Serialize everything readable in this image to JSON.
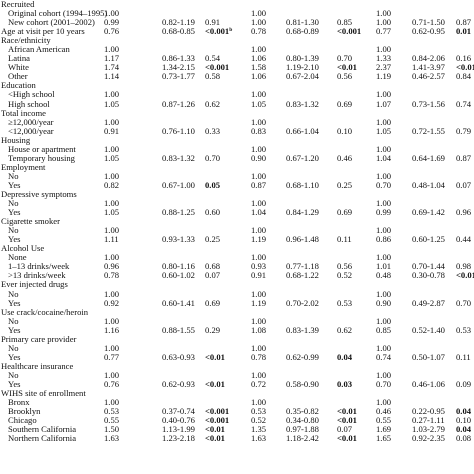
{
  "rows": [
    {
      "label": "Recruited",
      "sub": false
    },
    {
      "label": "Original cohort (1994–1995)",
      "sub": true,
      "or1": "1.00",
      "or2": "1.00",
      "or3": "1.00"
    },
    {
      "label": "New cohort (2001–2002)",
      "sub": true,
      "or1": "0.99",
      "ci1": "0.82-1.19",
      "p1": "0.91",
      "or2": "1.00",
      "ci2": "0.81-1.30",
      "p2": "0.85",
      "or3": "1.00",
      "ci3": "0.71-1.50",
      "p3": "0.87"
    },
    {
      "label": "Age at visit per 10 years",
      "sub": false,
      "or1": "0.76",
      "ci1": "0.68-0.85",
      "p1": "<0.001",
      "p1_sup": "b",
      "p1_bold": true,
      "or2": "0.78",
      "ci2": "0.68-0.89",
      "p2": "<0.001",
      "p2_bold": true,
      "or3": "0.77",
      "ci3": "0.62-0.95",
      "p3": "0.01",
      "p3_bold": true
    },
    {
      "label": "Race/ethnicity",
      "sub": false
    },
    {
      "label": "African American",
      "sub": true,
      "or1": "1.00",
      "or2": "1.00",
      "or3": "1.00"
    },
    {
      "label": "Latina",
      "sub": true,
      "or1": "1.17",
      "ci1": "0.86-1.33",
      "p1": "0.54",
      "or2": "1.06",
      "ci2": "0.80-1.39",
      "p2": "0.70",
      "or3": "1.33",
      "ci3": "0.84-2.06",
      "p3": "0.16"
    },
    {
      "label": "White",
      "sub": true,
      "or1": "1.74",
      "ci1": "1.34-2.15",
      "p1": "<0.001",
      "p1_bold": true,
      "or2": "1.58",
      "ci2": "1.19-2.10",
      "p2": "<0.01",
      "p2_bold": true,
      "or3": "2.37",
      "ci3": "1.41-3.97",
      "p3": "<0.01",
      "p3_bold": true
    },
    {
      "label": "Other",
      "sub": true,
      "or1": "1.14",
      "ci1": "0.73-1.77",
      "p1": "0.58",
      "or2": "1.06",
      "ci2": "0.67-2.04",
      "p2": "0.56",
      "or3": "1.19",
      "ci3": "0.46-2.57",
      "p3": "0.84"
    },
    {
      "label": "Education",
      "sub": false
    },
    {
      "label": "<High school",
      "sub": true,
      "or1": "1.00",
      "or2": "1.00",
      "or3": "1.00"
    },
    {
      "label": "High school",
      "sub": true,
      "or1": "1.05",
      "ci1": "0.87-1.26",
      "p1": "0.62",
      "or2": "1.05",
      "ci2": "0.83-1.32",
      "p2": "0.69",
      "or3": "1.07",
      "ci3": "0.73-1.56",
      "p3": "0.74"
    },
    {
      "label": "Total income",
      "sub": false
    },
    {
      "label": "≥12,000/year",
      "sub": true,
      "or1": "1.00",
      "or2": "1.00",
      "or3": "1.00"
    },
    {
      "label": "<12,000/year",
      "sub": true,
      "or1": "0.91",
      "ci1": "0.76-1.10",
      "p1": "0.33",
      "or2": "0.83",
      "ci2": "0.66-1.04",
      "p2": "0.10",
      "or3": "1.05",
      "ci3": "0.72-1.55",
      "p3": "0.79"
    },
    {
      "label": "Housing",
      "sub": false
    },
    {
      "label": "House or apartment",
      "sub": true,
      "or1": "1.00",
      "or2": "1.00",
      "or3": "1.00"
    },
    {
      "label": "Temporary housing",
      "sub": true,
      "or1": "1.05",
      "ci1": "0.83-1.32",
      "p1": "0.70",
      "or2": "0.90",
      "ci2": "0.67-1.20",
      "p2": "0.46",
      "or3": "1.04",
      "ci3": "0.64-1.69",
      "p3": "0.87"
    },
    {
      "label": "Employment",
      "sub": false
    },
    {
      "label": "No",
      "sub": true,
      "or1": "1.00",
      "or2": "1.00",
      "or3": "1.00"
    },
    {
      "label": "Yes",
      "sub": true,
      "or1": "0.82",
      "ci1": "0.67-1.00",
      "p1": "0.05",
      "p1_bold": true,
      "or2": "0.87",
      "ci2": "0.68-1.10",
      "p2": "0.25",
      "or3": "0.70",
      "ci3": "0.48-1.04",
      "p3": "0.07"
    },
    {
      "label": "Depressive symptoms",
      "sub": false
    },
    {
      "label": "No",
      "sub": true,
      "or1": "1.00",
      "or2": "1.00",
      "or3": "1.00"
    },
    {
      "label": "Yes",
      "sub": true,
      "or1": "1.05",
      "ci1": "0.88-1.25",
      "p1": "0.60",
      "or2": "1.04",
      "ci2": "0.84-1.29",
      "p2": "0.69",
      "or3": "0.99",
      "ci3": "0.69-1.42",
      "p3": "0.96"
    },
    {
      "label": "Cigarette smoker",
      "sub": false
    },
    {
      "label": "No",
      "sub": true,
      "or1": "1.00",
      "or2": "1.00",
      "or3": "1.00"
    },
    {
      "label": "Yes",
      "sub": true,
      "or1": "1.11",
      "ci1": "0.93-1.33",
      "p1": "0.25",
      "or2": "1.19",
      "ci2": "0.96-1.48",
      "p2": "0.11",
      "or3": "0.86",
      "ci3": "0.60-1.25",
      "p3": "0.44"
    },
    {
      "label": "Alcohol Use",
      "sub": false
    },
    {
      "label": "None",
      "sub": true,
      "or1": "1.00",
      "or2": "1.00",
      "or3": "1.00"
    },
    {
      "label": "1–13 drinks/week",
      "sub": true,
      "or1": "0.96",
      "ci1": "0.80-1.16",
      "p1": "0.68",
      "or2": "0.93",
      "ci2": "0.77-1.18",
      "p2": "0.56",
      "or3": "1.01",
      "ci3": "0.70-1.44",
      "p3": "0.98"
    },
    {
      "label": ">13 drinks/week",
      "sub": true,
      "or1": "0.78",
      "ci1": "0.60-1.02",
      "p1": "0.07",
      "or2": "0.91",
      "ci2": "0.68-1.22",
      "p2": "0.52",
      "or3": "0.48",
      "ci3": "0.30-0.78",
      "p3": "<0.01",
      "p3_bold": true
    },
    {
      "label": "Ever injected drugs",
      "sub": false
    },
    {
      "label": "No",
      "sub": true,
      "or1": "1.00",
      "or2": "1.00",
      "or3": "1.00"
    },
    {
      "label": "Yes",
      "sub": true,
      "or1": "0.92",
      "ci1": "0.60-1.41",
      "p1": "0.69",
      "or2": "1.19",
      "ci2": "0.70-2.02",
      "p2": "0.53",
      "or3": "0.90",
      "ci3": "0.49-2.87",
      "p3": "0.70"
    },
    {
      "label": "Use crack/cocaine/heroin",
      "sub": false
    },
    {
      "label": "No",
      "sub": true,
      "or1": "1.00",
      "or2": "1.00",
      "or3": "1.00"
    },
    {
      "label": "Yes",
      "sub": true,
      "or1": "1.16",
      "ci1": "0.88-1.55",
      "p1": "0.29",
      "or2": "1.08",
      "ci2": "0.83-1.39",
      "p2": "0.62",
      "or3": "0.85",
      "ci3": "0.52-1.40",
      "p3": "0.53"
    },
    {
      "label": "Primary care provider",
      "sub": false
    },
    {
      "label": "No",
      "sub": true,
      "or1": "1.00",
      "or2": "1.00",
      "or3": "1.00"
    },
    {
      "label": "Yes",
      "sub": true,
      "or1": "0.77",
      "ci1": "0.63-0.93",
      "p1": "<0.01",
      "p1_bold": true,
      "or2": "0.78",
      "ci2": "0.62-0.99",
      "p2": "0.04",
      "p2_bold": true,
      "or3": "0.74",
      "ci3": "0.50-1.07",
      "p3": "0.11"
    },
    {
      "label": "Healthcare insurance",
      "sub": false
    },
    {
      "label": "No",
      "sub": true,
      "or1": "1.00",
      "or2": "1.00",
      "or3": "1.00"
    },
    {
      "label": "Yes",
      "sub": true,
      "or1": "0.76",
      "ci1": "0.62-0.93",
      "p1": "<0.01",
      "p1_bold": true,
      "or2": "0.72",
      "ci2": "0.58-0.90",
      "p2": "0.03",
      "p2_bold": true,
      "or3": "0.70",
      "ci3": "0.46-1.06",
      "p3": "0.09"
    },
    {
      "label": "WIHS site of enrollment",
      "sub": false
    },
    {
      "label": "Bronx",
      "sub": true,
      "or1": "1.00",
      "or2": "1.00",
      "or3": "1.00"
    },
    {
      "label": "Brooklyn",
      "sub": true,
      "or1": "0.53",
      "ci1": "0.37-0.74",
      "p1": "<0.001",
      "p1_bold": true,
      "or2": "0.53",
      "ci2": "0.35-0.82",
      "p2": "<0.01",
      "p2_bold": true,
      "or3": "0.46",
      "ci3": "0.22-0.95",
      "p3": "0.04",
      "p3_bold": true
    },
    {
      "label": "Chicago",
      "sub": true,
      "or1": "0.55",
      "ci1": "0.40-0.76",
      "p1": "<0.001",
      "p1_bold": true,
      "or2": "0.52",
      "ci2": "0.34-0.80",
      "p2": "<0.01",
      "p2_bold": true,
      "or3": "0.55",
      "ci3": "0.27-1.11",
      "p3": "0.10"
    },
    {
      "label": "Southern California",
      "sub": true,
      "or1": "1.50",
      "ci1": "1.13-1.99",
      "p1": "<0.01",
      "p1_bold": true,
      "or2": "1.35",
      "ci2": "0.97-1.88",
      "p2": "0.07",
      "or3": "1.69",
      "ci3": "1.03-2.79",
      "p3": "0.04",
      "p3_bold": true
    },
    {
      "label": "Northern California",
      "sub": true,
      "or1": "1.63",
      "ci1": "1.23-2.18",
      "p1": "<0.01",
      "p1_bold": true,
      "or2": "1.63",
      "ci2": "1.18-2.42",
      "p2": "<0.01",
      "p2_bold": true,
      "or3": "1.65",
      "ci3": "0.92-2.35",
      "p3": "0.08"
    }
  ]
}
